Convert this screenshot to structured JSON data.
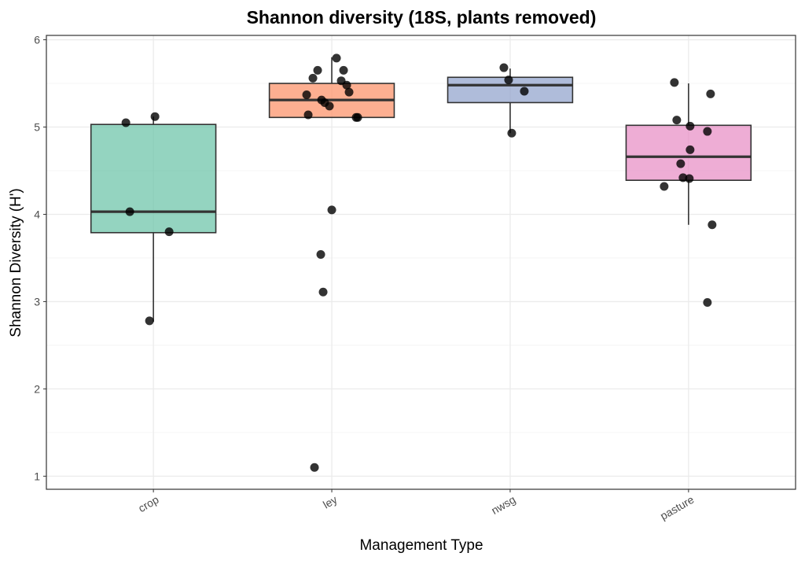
{
  "chart_data": {
    "type": "box",
    "title": "Shannon diversity (18S, plants removed)",
    "xlabel": "Management Type",
    "ylabel": "Shannon Diversity (H')",
    "ylim": [
      0.85,
      6.05
    ],
    "yticks": [
      1,
      2,
      3,
      4,
      5,
      6
    ],
    "grid": true,
    "legend": "none",
    "categories": [
      "crop",
      "ley",
      "nwsg",
      "pasture"
    ],
    "colors": [
      "#66C2A5",
      "#FC8D62",
      "#8DA0CB",
      "#E78AC3"
    ],
    "boxes": [
      {
        "q1": 3.79,
        "median": 4.03,
        "q3": 5.03,
        "whisker_low": 2.77,
        "whisker_high": 5.12
      },
      {
        "q1": 5.11,
        "median": 5.31,
        "q3": 5.5,
        "whisker_low": 5.11,
        "whisker_high": 5.8
      },
      {
        "q1": 5.28,
        "median": 5.48,
        "q3": 5.57,
        "whisker_low": 4.93,
        "whisker_high": 5.67
      },
      {
        "q1": 4.39,
        "median": 4.66,
        "q3": 5.02,
        "whisker_low": 3.88,
        "whisker_high": 5.5
      }
    ],
    "points": [
      [
        5.05,
        5.12,
        4.03,
        3.8,
        2.78
      ],
      [
        5.79,
        5.65,
        5.56,
        5.65,
        5.53,
        5.48,
        5.4,
        5.37,
        5.31,
        5.28,
        5.24,
        5.14,
        5.11,
        5.11,
        4.05,
        3.54,
        3.11,
        1.1
      ],
      [
        5.68,
        5.54,
        5.41,
        4.93
      ],
      [
        5.51,
        5.38,
        5.08,
        5.01,
        4.95,
        4.74,
        4.58,
        4.42,
        4.41,
        4.32,
        3.88,
        2.99
      ]
    ]
  }
}
